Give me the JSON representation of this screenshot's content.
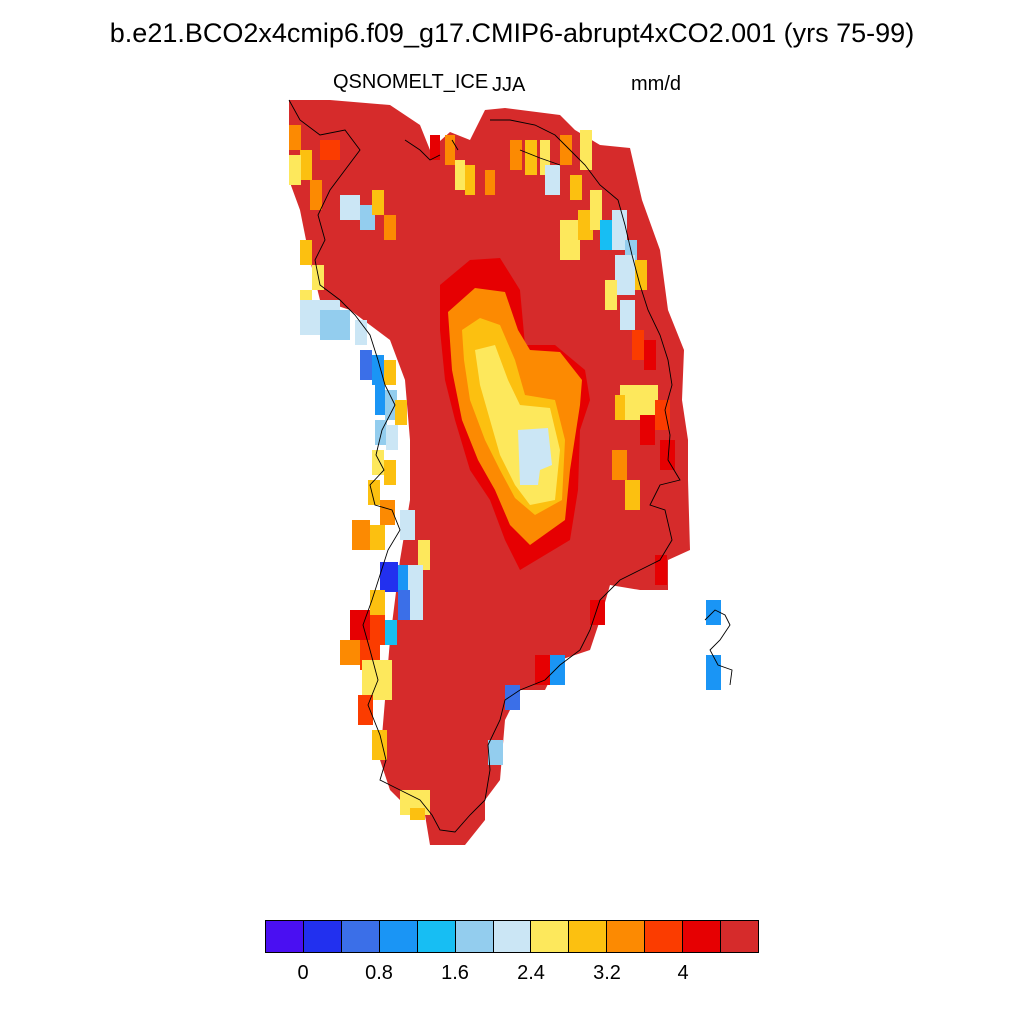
{
  "title": "b.e21.BCO2x4cmip6.f09_g17.CMIP6-abrupt4xCO2.001 (yrs 75-99)",
  "subtitle": {
    "left": "QSNOMELT_ICE",
    "center": "JJA",
    "right": "mm/d"
  },
  "colorbar": {
    "colors": [
      "#4a0ff2",
      "#2230ef",
      "#3b6fe8",
      "#1a95f5",
      "#17bef3",
      "#93cdee",
      "#cbe6f5",
      "#fde85c",
      "#fcc010",
      "#fc8a02",
      "#fb3c00",
      "#e60002",
      "#d62b2b"
    ],
    "labels": [
      "0",
      "0.8",
      "1.6",
      "2.4",
      "3.2",
      "4"
    ]
  },
  "map": {
    "region": "Greenland",
    "field_colors": {
      "base": "#d62b2b",
      "red": "#e60002",
      "red_orange": "#fb3c00",
      "orange": "#fc8a02",
      "amber": "#fcc010",
      "yellow": "#fde85c",
      "pale_blue": "#cbe6f5",
      "light_blue": "#93cdee",
      "cyan": "#17bef3",
      "sky_blue": "#1a95f5",
      "mid_blue": "#3b6fe8",
      "blue": "#2230ef",
      "purple": "#4a0ff2"
    }
  }
}
